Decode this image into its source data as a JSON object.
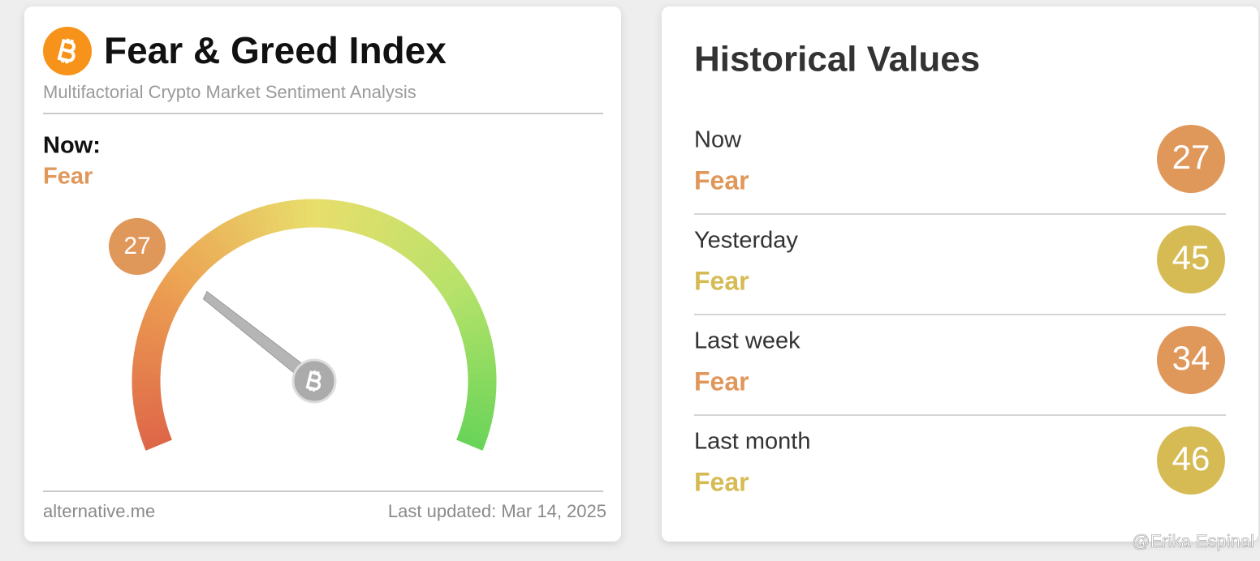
{
  "header": {
    "title": "Fear & Greed Index",
    "subtitle": "Multifactorial Crypto Market Sentiment Analysis"
  },
  "now": {
    "label": "Now:",
    "status": "Fear",
    "color": "#e0975a"
  },
  "gauge": {
    "value": 27,
    "color": "#e0975a"
  },
  "footer": {
    "source": "alternative.me",
    "updated": "Last updated: Mar 14, 2025"
  },
  "historical": {
    "title": "Historical Values",
    "rows": [
      {
        "label": "Now",
        "status": "Fear",
        "value": 27,
        "color": "#e0975a"
      },
      {
        "label": "Yesterday",
        "status": "Fear",
        "value": 45,
        "color": "#d6bb54"
      },
      {
        "label": "Last week",
        "status": "Fear",
        "value": 34,
        "color": "#e0975a"
      },
      {
        "label": "Last month",
        "status": "Fear",
        "value": 46,
        "color": "#d6bb54"
      }
    ]
  },
  "watermark": "@Erika Espinal"
}
